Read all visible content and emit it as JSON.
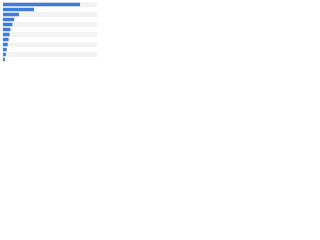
{
  "chart_data": {
    "type": "bar",
    "orientation": "horizontal",
    "categories": [
      null,
      null,
      null,
      null,
      null,
      null,
      null,
      null,
      null,
      null,
      null,
      null
    ],
    "values": [
      82,
      33,
      17,
      12,
      10,
      8,
      7,
      6,
      5,
      4,
      3,
      2
    ],
    "color": "#3b7dd8",
    "xlim": [
      0,
      100
    ],
    "grid": true
  }
}
